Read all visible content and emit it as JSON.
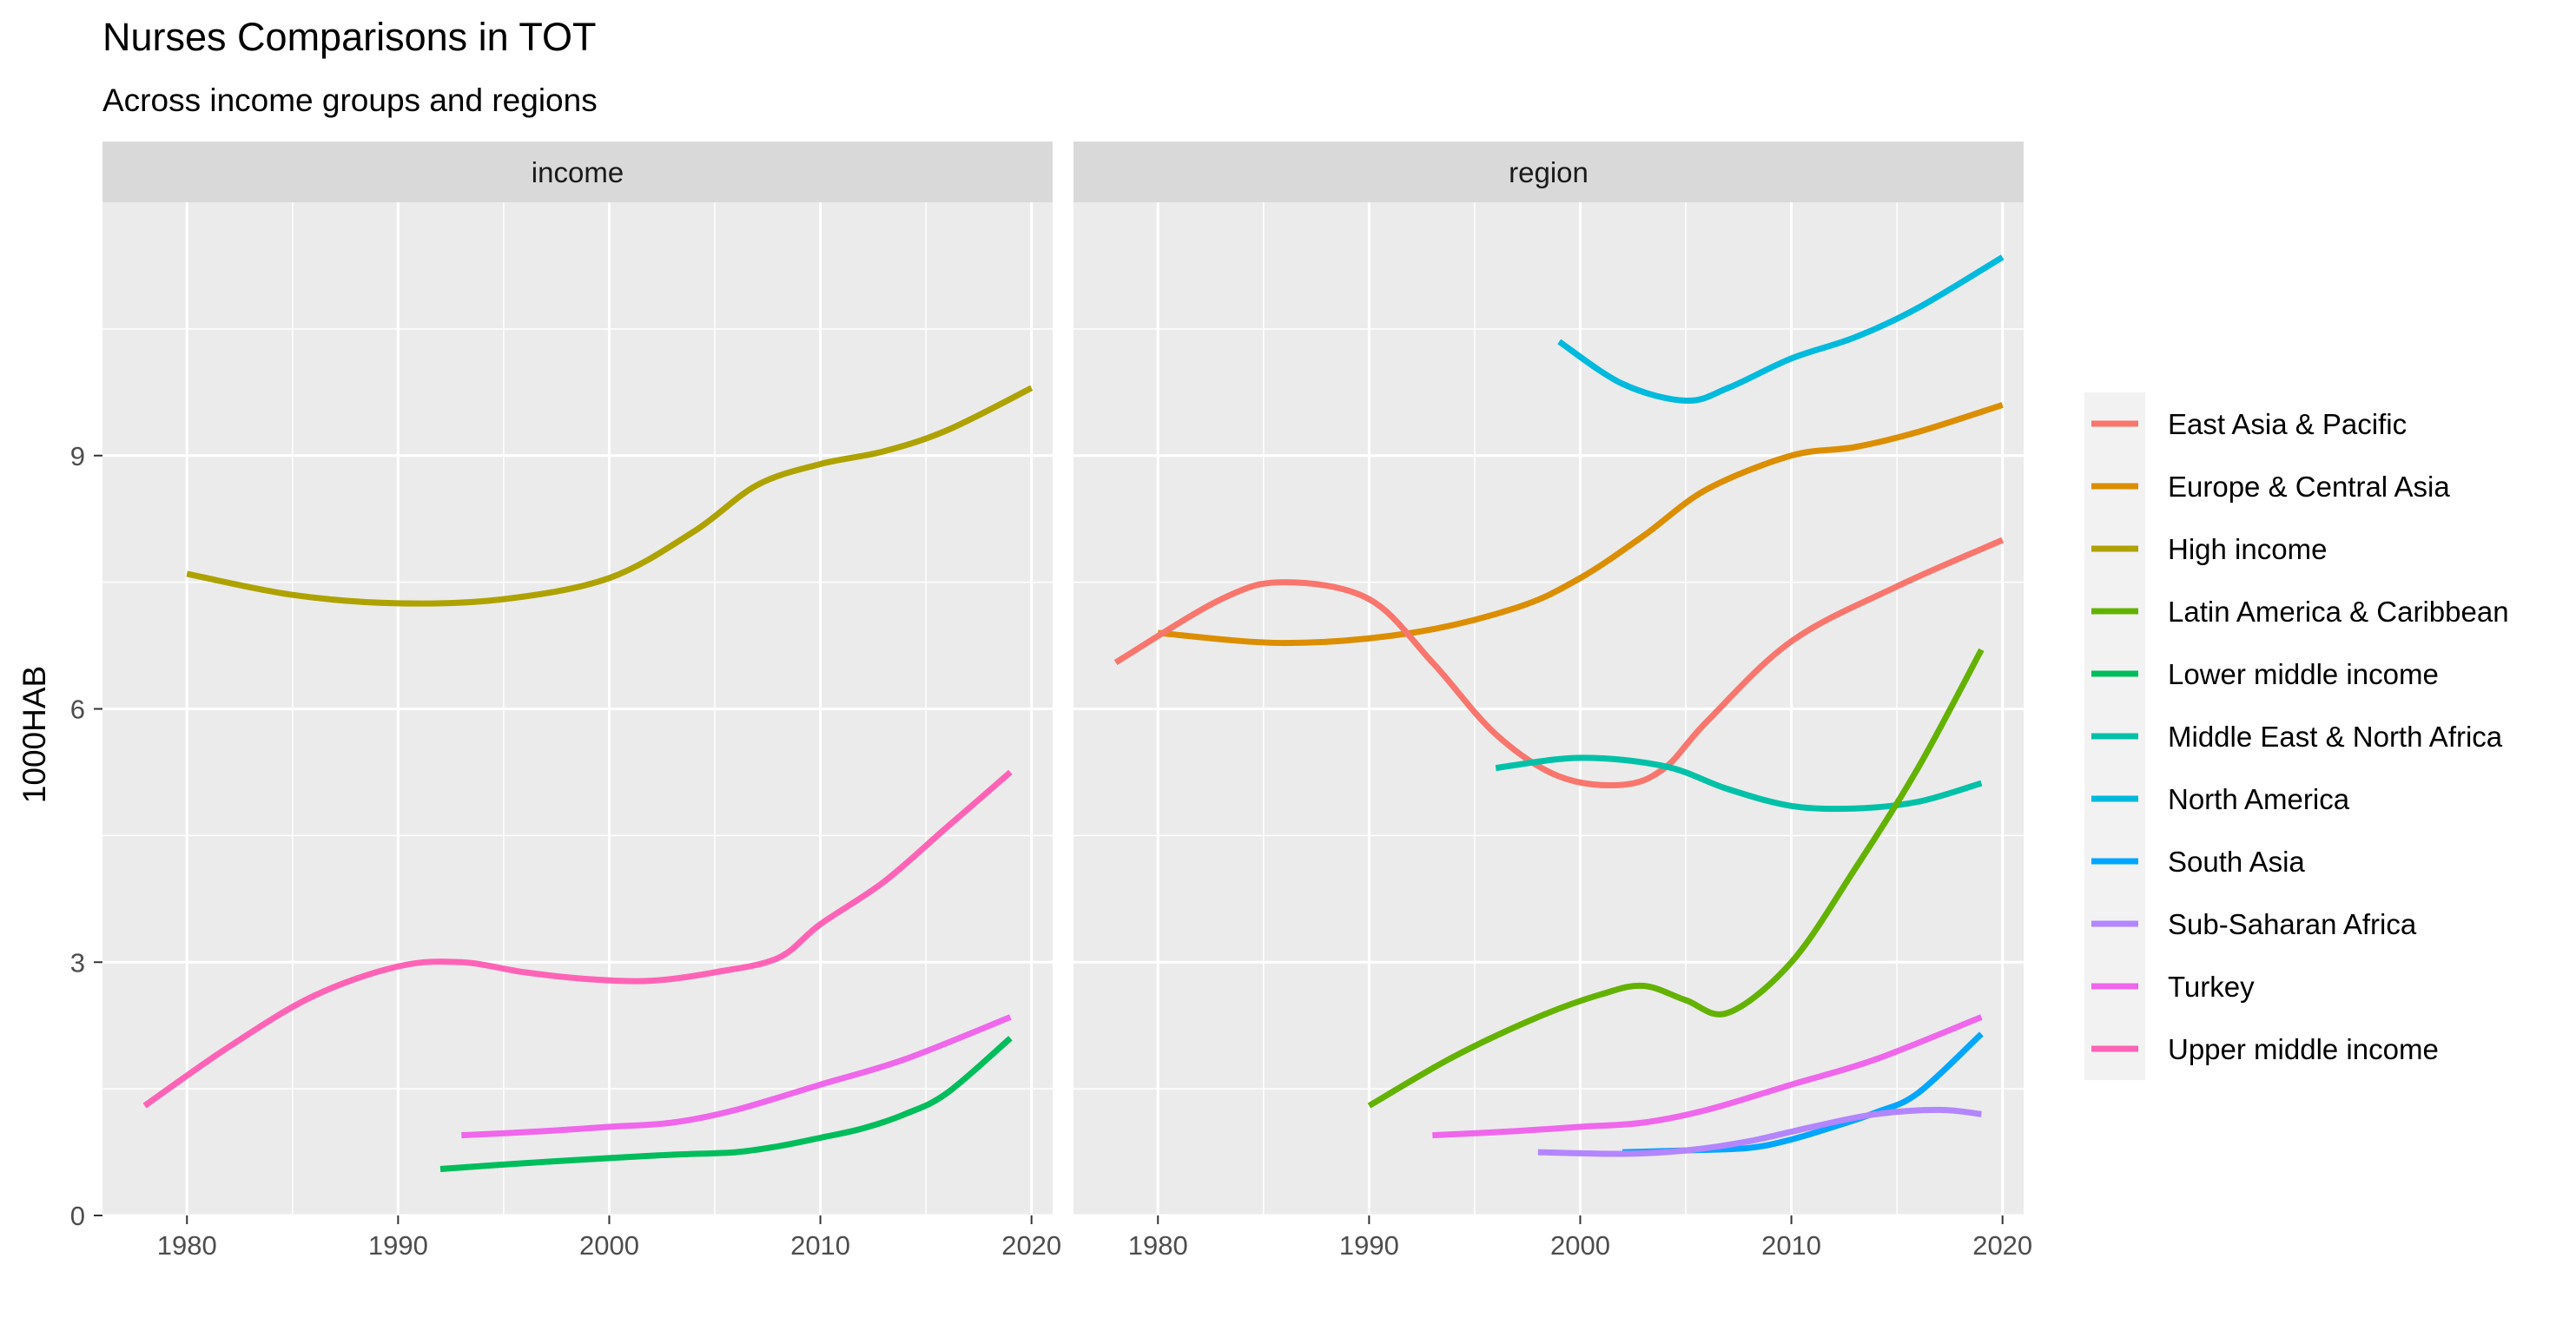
{
  "chart_data": {
    "type": "line",
    "title": "Nurses Comparisons in TOT",
    "subtitle": "Across income groups and regions",
    "ylabel": "1000HAB",
    "xlabel": "",
    "xlim": [
      1976,
      2021
    ],
    "ylim": [
      0,
      12
    ],
    "xticks": [
      1980,
      1990,
      2000,
      2010,
      2020
    ],
    "yticks": [
      0,
      3,
      6,
      9
    ],
    "grid": true,
    "legend_position": "right",
    "legend": [
      {
        "name": "East Asia & Pacific",
        "color": "#F8766D"
      },
      {
        "name": "Europe & Central Asia",
        "color": "#DB8E00"
      },
      {
        "name": "High income",
        "color": "#AEA200"
      },
      {
        "name": "Latin America & Caribbean",
        "color": "#64B200"
      },
      {
        "name": "Lower middle income",
        "color": "#00BD5C"
      },
      {
        "name": "Middle East & North Africa",
        "color": "#00C1A7"
      },
      {
        "name": "North America",
        "color": "#00BADE"
      },
      {
        "name": "South Asia",
        "color": "#00A6FF"
      },
      {
        "name": "Sub-Saharan Africa",
        "color": "#B385FF"
      },
      {
        "name": "Turkey",
        "color": "#EF67EB"
      },
      {
        "name": "Upper middle income",
        "color": "#FF63B6"
      }
    ],
    "panels": [
      {
        "label": "income",
        "series": [
          {
            "name": "High income",
            "x": [
              1980,
              1985,
              1990,
              1995,
              2000,
              2004,
              2007,
              2010,
              2013,
              2016,
              2020
            ],
            "y": [
              7.6,
              7.35,
              7.25,
              7.3,
              7.55,
              8.1,
              8.65,
              8.9,
              9.05,
              9.3,
              9.8
            ]
          },
          {
            "name": "Upper middle income",
            "x": [
              1978,
              1982,
              1986,
              1990,
              1993,
              1996,
              1999,
              2002,
              2005,
              2008,
              2010,
              2013,
              2016,
              2019
            ],
            "y": [
              1.3,
              2.0,
              2.6,
              2.95,
              3.0,
              2.88,
              2.8,
              2.78,
              2.88,
              3.05,
              3.45,
              3.95,
              4.6,
              5.25
            ]
          },
          {
            "name": "Turkey",
            "x": [
              1993,
              1997,
              2000,
              2003,
              2006,
              2010,
              2014,
              2019
            ],
            "y": [
              0.95,
              1.0,
              1.05,
              1.1,
              1.25,
              1.55,
              1.85,
              2.35
            ]
          },
          {
            "name": "Lower middle income",
            "x": [
              1992,
              1996,
              2000,
              2003,
              2006,
              2008,
              2010,
              2012,
              2014,
              2016,
              2019
            ],
            "y": [
              0.55,
              0.62,
              0.68,
              0.72,
              0.75,
              0.82,
              0.92,
              1.03,
              1.2,
              1.45,
              2.1
            ]
          }
        ]
      },
      {
        "label": "region",
        "series": [
          {
            "name": "North America",
            "x": [
              1999,
              2002,
              2005,
              2007,
              2010,
              2013,
              2016,
              2020
            ],
            "y": [
              10.35,
              9.85,
              9.65,
              9.8,
              10.15,
              10.4,
              10.75,
              11.35
            ]
          },
          {
            "name": "Europe & Central Asia",
            "x": [
              1980,
              1986,
              1992,
              1997,
              2000,
              2003,
              2006,
              2010,
              2013,
              2016,
              2020
            ],
            "y": [
              6.9,
              6.78,
              6.9,
              7.2,
              7.55,
              8.05,
              8.6,
              9.0,
              9.1,
              9.28,
              9.6
            ]
          },
          {
            "name": "East Asia & Pacific",
            "x": [
              1978,
              1983,
              1986,
              1990,
              1993,
              1996,
              1999,
              2002,
              2004,
              2006,
              2010,
              2015,
              2020
            ],
            "y": [
              6.55,
              7.3,
              7.5,
              7.3,
              6.55,
              5.7,
              5.2,
              5.1,
              5.3,
              5.85,
              6.8,
              7.45,
              8.0
            ]
          },
          {
            "name": "Middle East & North Africa",
            "x": [
              1996,
              2000,
              2004,
              2007,
              2010,
              2013,
              2016,
              2019
            ],
            "y": [
              5.3,
              5.42,
              5.32,
              5.05,
              4.85,
              4.82,
              4.9,
              5.12
            ]
          },
          {
            "name": "Latin America & Caribbean",
            "x": [
              1990,
              1994,
              1998,
              2001,
              2003,
              2005,
              2007,
              2010,
              2013,
              2016,
              2019
            ],
            "y": [
              1.3,
              1.88,
              2.35,
              2.62,
              2.72,
              2.55,
              2.4,
              3.0,
              4.1,
              5.3,
              6.7
            ]
          },
          {
            "name": "Turkey",
            "x": [
              1993,
              1997,
              2000,
              2003,
              2006,
              2010,
              2014,
              2019
            ],
            "y": [
              0.95,
              1.0,
              1.05,
              1.1,
              1.25,
              1.55,
              1.85,
              2.35
            ]
          },
          {
            "name": "South Asia",
            "x": [
              2002,
              2005,
              2008,
              2010,
              2012,
              2014,
              2016,
              2019
            ],
            "y": [
              0.75,
              0.77,
              0.8,
              0.9,
              1.05,
              1.22,
              1.45,
              2.15
            ]
          },
          {
            "name": "Sub-Saharan Africa",
            "x": [
              1998,
              2002,
              2005,
              2008,
              2011,
              2014,
              2017,
              2019
            ],
            "y": [
              0.75,
              0.73,
              0.77,
              0.88,
              1.05,
              1.2,
              1.25,
              1.2
            ]
          }
        ]
      }
    ]
  }
}
